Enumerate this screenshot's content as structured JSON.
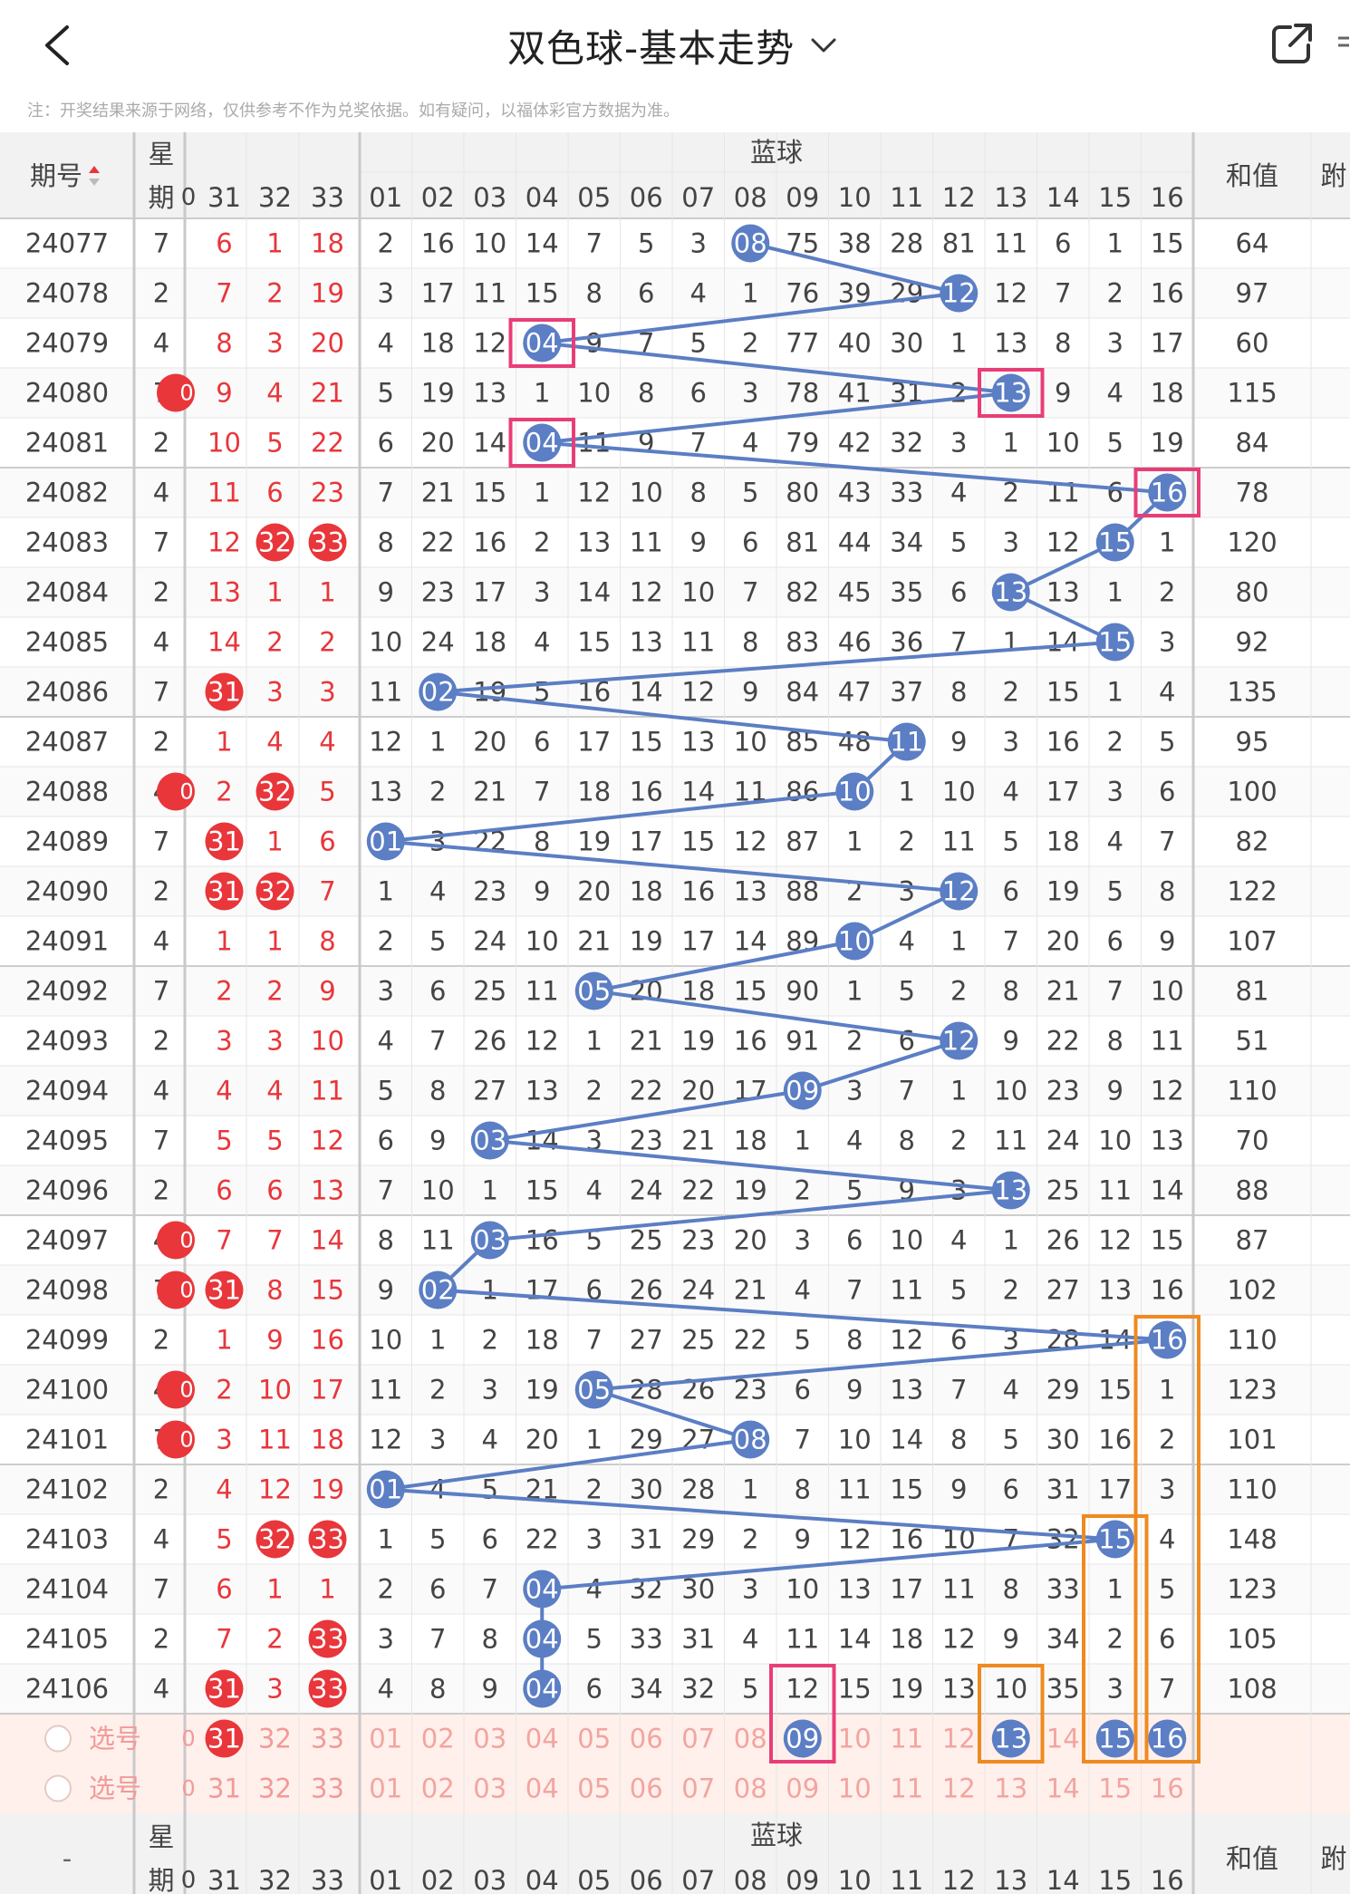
{
  "header": {
    "title": "双色球-基本走势",
    "back_icon": "chevron-left-icon",
    "dropdown_icon": "chevron-down-icon",
    "share_icon": "share-icon"
  },
  "note": "注：开奖结果来源于网络，仅供参考不作为兑奖依据。如有疑问，以福体彩官方数据为准。",
  "table": {
    "col_issue": "期号",
    "col_week_line1": "星",
    "col_week_line2": "期",
    "blue_group": "蓝球",
    "col_sum": "和值",
    "col_extra": "跗",
    "red_partial": "0",
    "red_cols": [
      "31",
      "32",
      "33"
    ],
    "blue_cols": [
      "01",
      "02",
      "03",
      "04",
      "05",
      "06",
      "07",
      "08",
      "09",
      "10",
      "11",
      "12",
      "13",
      "14",
      "15",
      "16"
    ],
    "footer_issue": "-",
    "select_label": "选号"
  },
  "rows": [
    {
      "issue": "24077",
      "week": "7",
      "left": "",
      "red": [
        "6",
        "1",
        "18"
      ],
      "red_hit": [
        false,
        false,
        false
      ],
      "blue": [
        "2",
        "16",
        "10",
        "14",
        "7",
        "5",
        "3",
        "08",
        "75",
        "38",
        "28",
        "81",
        "11",
        "6",
        "1",
        "15"
      ],
      "hit": 8,
      "sum": "64"
    },
    {
      "issue": "24078",
      "week": "2",
      "left": "",
      "red": [
        "7",
        "2",
        "19"
      ],
      "red_hit": [
        false,
        false,
        false
      ],
      "blue": [
        "3",
        "17",
        "11",
        "15",
        "8",
        "6",
        "4",
        "1",
        "76",
        "39",
        "29",
        "12",
        "12",
        "7",
        "2",
        "16"
      ],
      "hit": 12,
      "sum": "97"
    },
    {
      "issue": "24079",
      "week": "4",
      "left": "",
      "red": [
        "8",
        "3",
        "20"
      ],
      "red_hit": [
        false,
        false,
        false
      ],
      "blue": [
        "4",
        "18",
        "12",
        "04",
        "9",
        "7",
        "5",
        "2",
        "77",
        "40",
        "30",
        "1",
        "13",
        "8",
        "3",
        "17"
      ],
      "hit": 4,
      "sum": "60"
    },
    {
      "issue": "24080",
      "week": "7",
      "left": "0",
      "red": [
        "9",
        "4",
        "21"
      ],
      "red_hit": [
        false,
        false,
        false
      ],
      "blue": [
        "5",
        "19",
        "13",
        "1",
        "10",
        "8",
        "6",
        "3",
        "78",
        "41",
        "31",
        "2",
        "13",
        "9",
        "4",
        "18"
      ],
      "hit": 13,
      "sum": "115"
    },
    {
      "issue": "24081",
      "week": "2",
      "left": "",
      "red": [
        "10",
        "5",
        "22"
      ],
      "red_hit": [
        false,
        false,
        false
      ],
      "blue": [
        "6",
        "20",
        "14",
        "04",
        "11",
        "9",
        "7",
        "4",
        "79",
        "42",
        "32",
        "3",
        "1",
        "10",
        "5",
        "19"
      ],
      "hit": 4,
      "sum": "84"
    },
    {
      "issue": "24082",
      "week": "4",
      "left": "",
      "red": [
        "11",
        "6",
        "23"
      ],
      "red_hit": [
        false,
        false,
        false
      ],
      "blue": [
        "7",
        "21",
        "15",
        "1",
        "12",
        "10",
        "8",
        "5",
        "80",
        "43",
        "33",
        "4",
        "2",
        "11",
        "6",
        "16"
      ],
      "hit": 16,
      "sum": "78"
    },
    {
      "issue": "24083",
      "week": "7",
      "left": "",
      "red": [
        "12",
        "32",
        "33"
      ],
      "red_hit": [
        false,
        true,
        true
      ],
      "blue": [
        "8",
        "22",
        "16",
        "2",
        "13",
        "11",
        "9",
        "6",
        "81",
        "44",
        "34",
        "5",
        "3",
        "12",
        "15",
        "1"
      ],
      "hit": 15,
      "sum": "120"
    },
    {
      "issue": "24084",
      "week": "2",
      "left": "",
      "red": [
        "13",
        "1",
        "1"
      ],
      "red_hit": [
        false,
        false,
        false
      ],
      "blue": [
        "9",
        "23",
        "17",
        "3",
        "14",
        "12",
        "10",
        "7",
        "82",
        "45",
        "35",
        "6",
        "13",
        "13",
        "1",
        "2"
      ],
      "hit": 13,
      "sum": "80"
    },
    {
      "issue": "24085",
      "week": "4",
      "left": "",
      "red": [
        "14",
        "2",
        "2"
      ],
      "red_hit": [
        false,
        false,
        false
      ],
      "blue": [
        "10",
        "24",
        "18",
        "4",
        "15",
        "13",
        "11",
        "8",
        "83",
        "46",
        "36",
        "7",
        "1",
        "14",
        "15",
        "3"
      ],
      "hit": 15,
      "sum": "92"
    },
    {
      "issue": "24086",
      "week": "7",
      "left": "",
      "red": [
        "31",
        "3",
        "3"
      ],
      "red_hit": [
        true,
        false,
        false
      ],
      "blue": [
        "11",
        "02",
        "19",
        "5",
        "16",
        "14",
        "12",
        "9",
        "84",
        "47",
        "37",
        "8",
        "2",
        "15",
        "1",
        "4"
      ],
      "hit": 2,
      "sum": "135"
    },
    {
      "issue": "24087",
      "week": "2",
      "left": "",
      "red": [
        "1",
        "4",
        "4"
      ],
      "red_hit": [
        false,
        false,
        false
      ],
      "blue": [
        "12",
        "1",
        "20",
        "6",
        "17",
        "15",
        "13",
        "10",
        "85",
        "48",
        "11",
        "9",
        "3",
        "16",
        "2",
        "5"
      ],
      "hit": 11,
      "sum": "95"
    },
    {
      "issue": "24088",
      "week": "4",
      "left": "0",
      "red": [
        "2",
        "32",
        "5"
      ],
      "red_hit": [
        false,
        true,
        false
      ],
      "blue": [
        "13",
        "2",
        "21",
        "7",
        "18",
        "16",
        "14",
        "11",
        "86",
        "10",
        "1",
        "10",
        "4",
        "17",
        "3",
        "6"
      ],
      "hit": 10,
      "sum": "100"
    },
    {
      "issue": "24089",
      "week": "7",
      "left": "",
      "red": [
        "31",
        "1",
        "6"
      ],
      "red_hit": [
        true,
        false,
        false
      ],
      "blue": [
        "01",
        "3",
        "22",
        "8",
        "19",
        "17",
        "15",
        "12",
        "87",
        "1",
        "2",
        "11",
        "5",
        "18",
        "4",
        "7"
      ],
      "hit": 1,
      "sum": "82"
    },
    {
      "issue": "24090",
      "week": "2",
      "left": "",
      "red": [
        "31",
        "32",
        "7"
      ],
      "red_hit": [
        true,
        true,
        false
      ],
      "blue": [
        "1",
        "4",
        "23",
        "9",
        "20",
        "18",
        "16",
        "13",
        "88",
        "2",
        "3",
        "12",
        "6",
        "19",
        "5",
        "8"
      ],
      "hit": 12,
      "sum": "122"
    },
    {
      "issue": "24091",
      "week": "4",
      "left": "",
      "red": [
        "1",
        "1",
        "8"
      ],
      "red_hit": [
        false,
        false,
        false
      ],
      "blue": [
        "2",
        "5",
        "24",
        "10",
        "21",
        "19",
        "17",
        "14",
        "89",
        "10",
        "4",
        "1",
        "7",
        "20",
        "6",
        "9"
      ],
      "hit": 10,
      "sum": "107"
    },
    {
      "issue": "24092",
      "week": "7",
      "left": "",
      "red": [
        "2",
        "2",
        "9"
      ],
      "red_hit": [
        false,
        false,
        false
      ],
      "blue": [
        "3",
        "6",
        "25",
        "11",
        "05",
        "20",
        "18",
        "15",
        "90",
        "1",
        "5",
        "2",
        "8",
        "21",
        "7",
        "10"
      ],
      "hit": 5,
      "sum": "81"
    },
    {
      "issue": "24093",
      "week": "2",
      "left": "",
      "red": [
        "3",
        "3",
        "10"
      ],
      "red_hit": [
        false,
        false,
        false
      ],
      "blue": [
        "4",
        "7",
        "26",
        "12",
        "1",
        "21",
        "19",
        "16",
        "91",
        "2",
        "6",
        "12",
        "9",
        "22",
        "8",
        "11"
      ],
      "hit": 12,
      "sum": "51"
    },
    {
      "issue": "24094",
      "week": "4",
      "left": "",
      "red": [
        "4",
        "4",
        "11"
      ],
      "red_hit": [
        false,
        false,
        false
      ],
      "blue": [
        "5",
        "8",
        "27",
        "13",
        "2",
        "22",
        "20",
        "17",
        "09",
        "3",
        "7",
        "1",
        "10",
        "23",
        "9",
        "12"
      ],
      "hit": 9,
      "sum": "110"
    },
    {
      "issue": "24095",
      "week": "7",
      "left": "",
      "red": [
        "5",
        "5",
        "12"
      ],
      "red_hit": [
        false,
        false,
        false
      ],
      "blue": [
        "6",
        "9",
        "03",
        "14",
        "3",
        "23",
        "21",
        "18",
        "1",
        "4",
        "8",
        "2",
        "11",
        "24",
        "10",
        "13"
      ],
      "hit": 3,
      "sum": "70"
    },
    {
      "issue": "24096",
      "week": "2",
      "left": "",
      "red": [
        "6",
        "6",
        "13"
      ],
      "red_hit": [
        false,
        false,
        false
      ],
      "blue": [
        "7",
        "10",
        "1",
        "15",
        "4",
        "24",
        "22",
        "19",
        "2",
        "5",
        "9",
        "3",
        "13",
        "25",
        "11",
        "14"
      ],
      "hit": 13,
      "sum": "88"
    },
    {
      "issue": "24097",
      "week": "4",
      "left": "0",
      "red": [
        "7",
        "7",
        "14"
      ],
      "red_hit": [
        false,
        false,
        false
      ],
      "blue": [
        "8",
        "11",
        "03",
        "16",
        "5",
        "25",
        "23",
        "20",
        "3",
        "6",
        "10",
        "4",
        "1",
        "26",
        "12",
        "15"
      ],
      "hit": 3,
      "sum": "87"
    },
    {
      "issue": "24098",
      "week": "7",
      "left": "0",
      "red": [
        "31",
        "8",
        "15"
      ],
      "red_hit": [
        true,
        false,
        false
      ],
      "blue": [
        "9",
        "02",
        "1",
        "17",
        "6",
        "26",
        "24",
        "21",
        "4",
        "7",
        "11",
        "5",
        "2",
        "27",
        "13",
        "16"
      ],
      "hit": 2,
      "sum": "102"
    },
    {
      "issue": "24099",
      "week": "2",
      "left": "",
      "red": [
        "1",
        "9",
        "16"
      ],
      "red_hit": [
        false,
        false,
        false
      ],
      "blue": [
        "10",
        "1",
        "2",
        "18",
        "7",
        "27",
        "25",
        "22",
        "5",
        "8",
        "12",
        "6",
        "3",
        "28",
        "14",
        "16"
      ],
      "hit": 16,
      "sum": "110"
    },
    {
      "issue": "24100",
      "week": "4",
      "left": "0",
      "red": [
        "2",
        "10",
        "17"
      ],
      "red_hit": [
        false,
        false,
        false
      ],
      "blue": [
        "11",
        "2",
        "3",
        "19",
        "05",
        "28",
        "26",
        "23",
        "6",
        "9",
        "13",
        "7",
        "4",
        "29",
        "15",
        "1"
      ],
      "hit": 5,
      "sum": "123"
    },
    {
      "issue": "24101",
      "week": "7",
      "left": "0",
      "red": [
        "3",
        "11",
        "18"
      ],
      "red_hit": [
        false,
        false,
        false
      ],
      "blue": [
        "12",
        "3",
        "4",
        "20",
        "1",
        "29",
        "27",
        "08",
        "7",
        "10",
        "14",
        "8",
        "5",
        "30",
        "16",
        "2"
      ],
      "hit": 8,
      "sum": "101"
    },
    {
      "issue": "24102",
      "week": "2",
      "left": "",
      "red": [
        "4",
        "12",
        "19"
      ],
      "red_hit": [
        false,
        false,
        false
      ],
      "blue": [
        "01",
        "4",
        "5",
        "21",
        "2",
        "30",
        "28",
        "1",
        "8",
        "11",
        "15",
        "9",
        "6",
        "31",
        "17",
        "3"
      ],
      "hit": 1,
      "sum": "110"
    },
    {
      "issue": "24103",
      "week": "4",
      "left": "",
      "red": [
        "5",
        "32",
        "33"
      ],
      "red_hit": [
        false,
        true,
        true
      ],
      "blue": [
        "1",
        "5",
        "6",
        "22",
        "3",
        "31",
        "29",
        "2",
        "9",
        "12",
        "16",
        "10",
        "7",
        "32",
        "15",
        "4"
      ],
      "hit": 15,
      "sum": "148"
    },
    {
      "issue": "24104",
      "week": "7",
      "left": "",
      "red": [
        "6",
        "1",
        "1"
      ],
      "red_hit": [
        false,
        false,
        false
      ],
      "blue": [
        "2",
        "6",
        "7",
        "04",
        "4",
        "32",
        "30",
        "3",
        "10",
        "13",
        "17",
        "11",
        "8",
        "33",
        "1",
        "5"
      ],
      "hit": 4,
      "sum": "123"
    },
    {
      "issue": "24105",
      "week": "2",
      "left": "",
      "red": [
        "7",
        "2",
        "33"
      ],
      "red_hit": [
        false,
        false,
        true
      ],
      "blue": [
        "3",
        "7",
        "8",
        "04",
        "5",
        "33",
        "31",
        "4",
        "11",
        "14",
        "18",
        "12",
        "9",
        "34",
        "2",
        "6"
      ],
      "hit": 4,
      "sum": "105"
    },
    {
      "issue": "24106",
      "week": "4",
      "left": "",
      "red": [
        "31",
        "3",
        "33"
      ],
      "red_hit": [
        true,
        false,
        true
      ],
      "blue": [
        "4",
        "8",
        "9",
        "04",
        "6",
        "34",
        "32",
        "5",
        "12",
        "15",
        "19",
        "13",
        "10",
        "35",
        "3",
        "7"
      ],
      "hit": 4,
      "sum": "108"
    }
  ],
  "select_rows": [
    {
      "label": "选号",
      "left": "0",
      "red": [
        "31",
        "32",
        "33"
      ],
      "red_sel": [
        true,
        false,
        false
      ],
      "blue": [
        "01",
        "02",
        "03",
        "04",
        "05",
        "06",
        "07",
        "08",
        "09",
        "10",
        "11",
        "12",
        "13",
        "14",
        "15",
        "16"
      ],
      "blue_sel": [
        9,
        13,
        15,
        16
      ]
    },
    {
      "label": "选号",
      "left": "0",
      "red": [
        "31",
        "32",
        "33"
      ],
      "red_sel": [
        false,
        false,
        false
      ],
      "blue": [
        "01",
        "02",
        "03",
        "04",
        "05",
        "06",
        "07",
        "08",
        "09",
        "10",
        "11",
        "12",
        "13",
        "14",
        "15",
        "16"
      ],
      "blue_sel": []
    }
  ],
  "highlights": {
    "pink": [
      {
        "col": 4,
        "row_from": 2,
        "row_to": 2
      },
      {
        "col": 13,
        "row_from": 3,
        "row_to": 3
      },
      {
        "col": 4,
        "row_from": 4,
        "row_to": 4
      },
      {
        "col": 16,
        "row_from": 5,
        "row_to": 5
      },
      {
        "col": 9,
        "row_from": 29,
        "row_to": 30
      }
    ],
    "orange": [
      {
        "col": 16,
        "row_from": 22,
        "row_to": 30
      },
      {
        "col": 15,
        "row_from": 26,
        "row_to": 30
      },
      {
        "col": 13,
        "row_from": 29,
        "row_to": 30
      }
    ]
  },
  "colors": {
    "red": "#e8363b",
    "red_light": "#f29a98",
    "blue": "#5b7ec4",
    "blue_light": "#f2a5a0",
    "pink_box": "#e83e78",
    "orange_box": "#ef8a20",
    "grid": "#e6e6e6",
    "group_sep": "#c9c9c9",
    "header_bg": "#f2f2f2",
    "select_bg": "#fff0ec",
    "text": "#444444"
  }
}
